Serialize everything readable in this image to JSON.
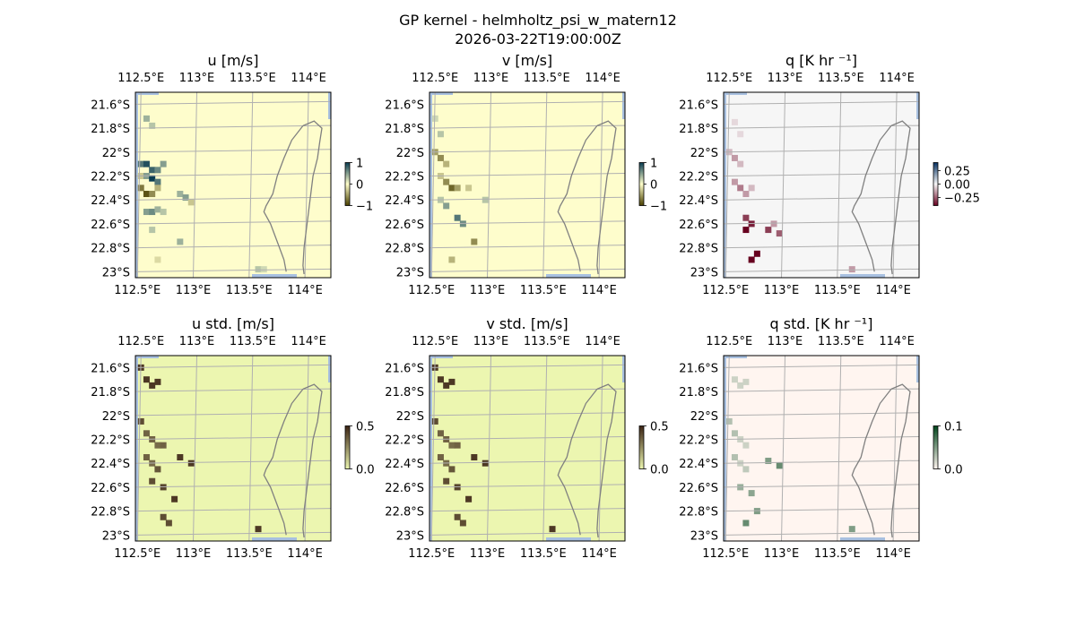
{
  "title": "GP kernel - helmholtz_psi_w_matern12",
  "subtitle": "2026-03-22T19:00:00Z",
  "chart_data": {
    "type": "heatmap",
    "shared": {
      "lon_ticks": [
        112.5,
        113.0,
        113.5,
        114.0
      ],
      "lon_tick_labels": [
        "112.5°E",
        "113°E",
        "113.5°E",
        "114°E"
      ],
      "lat_ticks": [
        -21.6,
        -21.8,
        -22.0,
        -22.2,
        -22.4,
        -22.6,
        -22.8,
        -23.0
      ],
      "lat_tick_labels": [
        "21.6°S",
        "21.8°S",
        "22°S",
        "22.2°S",
        "22.4°S",
        "22.6°S",
        "22.8°S",
        "23°S"
      ],
      "xlim": [
        112.45,
        114.2
      ],
      "ylim": [
        -23.05,
        -21.5
      ],
      "grid": true,
      "coastline": [
        [
          113.95,
          -21.78
        ],
        [
          114.05,
          -21.74
        ],
        [
          114.12,
          -21.8
        ],
        [
          114.1,
          -21.92
        ],
        [
          114.08,
          -22.05
        ],
        [
          114.04,
          -22.2
        ],
        [
          114.02,
          -22.35
        ],
        [
          114.0,
          -22.5
        ],
        [
          113.98,
          -22.65
        ],
        [
          113.96,
          -22.8
        ],
        [
          113.95,
          -22.95
        ],
        [
          113.96,
          -23.02
        ]
      ],
      "peninsula_outline": [
        [
          113.95,
          -21.78
        ],
        [
          113.85,
          -21.9
        ],
        [
          113.78,
          -22.05
        ],
        [
          113.72,
          -22.2
        ],
        [
          113.68,
          -22.35
        ],
        [
          113.62,
          -22.45
        ],
        [
          113.6,
          -22.5
        ],
        [
          113.66,
          -22.6
        ],
        [
          113.72,
          -22.75
        ],
        [
          113.78,
          -22.9
        ],
        [
          113.8,
          -23.0
        ]
      ]
    },
    "panels": [
      {
        "title": "u [m/s]",
        "colormap": "diverging teal-yellow",
        "background": "#fefdcc",
        "colorbar": {
          "ticks": [
            1,
            0,
            -1
          ],
          "tick_labels": [
            "1",
            "0",
            "−1"
          ],
          "range": [
            -1,
            1
          ],
          "colors": [
            "#0a3d52",
            "#ffffcc",
            "#4a4000"
          ]
        },
        "cells": [
          {
            "lon": 112.55,
            "lat": -21.72,
            "value": 0.4
          },
          {
            "lon": 112.6,
            "lat": -21.78,
            "value": 0.3
          },
          {
            "lon": 112.5,
            "lat": -22.1,
            "value": 0.7
          },
          {
            "lon": 112.55,
            "lat": -22.1,
            "value": 0.9
          },
          {
            "lon": 112.6,
            "lat": -22.15,
            "value": 0.8
          },
          {
            "lon": 112.65,
            "lat": -22.15,
            "value": 0.6
          },
          {
            "lon": 112.7,
            "lat": -22.1,
            "value": 0.5
          },
          {
            "lon": 112.5,
            "lat": -22.2,
            "value": -0.3
          },
          {
            "lon": 112.55,
            "lat": -22.2,
            "value": 0.5
          },
          {
            "lon": 112.6,
            "lat": -22.22,
            "value": 1.0
          },
          {
            "lon": 112.65,
            "lat": -22.25,
            "value": 0.7
          },
          {
            "lon": 112.5,
            "lat": -22.3,
            "value": -0.7
          },
          {
            "lon": 112.55,
            "lat": -22.35,
            "value": -0.9
          },
          {
            "lon": 112.6,
            "lat": -22.35,
            "value": -0.6
          },
          {
            "lon": 112.65,
            "lat": -22.3,
            "value": -0.4
          },
          {
            "lon": 112.55,
            "lat": -22.5,
            "value": 0.5
          },
          {
            "lon": 112.6,
            "lat": -22.5,
            "value": 0.6
          },
          {
            "lon": 112.65,
            "lat": -22.48,
            "value": 0.4
          },
          {
            "lon": 112.7,
            "lat": -22.5,
            "value": 0.3
          },
          {
            "lon": 112.85,
            "lat": -22.35,
            "value": 0.4
          },
          {
            "lon": 112.9,
            "lat": -22.38,
            "value": 0.5
          },
          {
            "lon": 112.95,
            "lat": -22.42,
            "value": -0.3
          },
          {
            "lon": 112.6,
            "lat": -22.65,
            "value": 0.3
          },
          {
            "lon": 112.85,
            "lat": -22.75,
            "value": 0.4
          },
          {
            "lon": 112.65,
            "lat": -22.9,
            "value": -0.2
          },
          {
            "lon": 113.55,
            "lat": -22.98,
            "value": 0.3
          },
          {
            "lon": 113.6,
            "lat": -22.98,
            "value": 0.2
          }
        ]
      },
      {
        "title": "v [m/s]",
        "colormap": "diverging teal-yellow",
        "background": "#fefdcc",
        "colorbar": {
          "ticks": [
            1,
            0,
            -1
          ],
          "tick_labels": [
            "1",
            "0",
            "−1"
          ],
          "range": [
            -1,
            1
          ],
          "colors": [
            "#0a3d52",
            "#ffffcc",
            "#4a4000"
          ]
        },
        "cells": [
          {
            "lon": 112.5,
            "lat": -21.72,
            "value": 0.2
          },
          {
            "lon": 112.55,
            "lat": -21.85,
            "value": 0.3
          },
          {
            "lon": 112.5,
            "lat": -22.0,
            "value": -0.5
          },
          {
            "lon": 112.55,
            "lat": -22.05,
            "value": -0.6
          },
          {
            "lon": 112.6,
            "lat": -22.1,
            "value": -0.4
          },
          {
            "lon": 112.55,
            "lat": -22.2,
            "value": -0.3
          },
          {
            "lon": 112.6,
            "lat": -22.25,
            "value": -0.6
          },
          {
            "lon": 112.65,
            "lat": -22.3,
            "value": -0.8
          },
          {
            "lon": 112.7,
            "lat": -22.3,
            "value": -0.5
          },
          {
            "lon": 112.55,
            "lat": -22.4,
            "value": 0.3
          },
          {
            "lon": 112.6,
            "lat": -22.45,
            "value": 0.5
          },
          {
            "lon": 112.7,
            "lat": -22.55,
            "value": 0.7
          },
          {
            "lon": 112.75,
            "lat": -22.6,
            "value": 0.6
          },
          {
            "lon": 112.8,
            "lat": -22.3,
            "value": -0.3
          },
          {
            "lon": 112.95,
            "lat": -22.4,
            "value": 0.3
          },
          {
            "lon": 112.85,
            "lat": -22.75,
            "value": -0.6
          },
          {
            "lon": 112.65,
            "lat": -22.9,
            "value": -0.4
          }
        ]
      },
      {
        "title": "q [K hr ⁻¹]",
        "colormap": "diverging blue-red",
        "background": "#f6f6f6",
        "colorbar": {
          "ticks": [
            0.25,
            0.0,
            -0.25
          ],
          "tick_labels": [
            "0.25",
            "0.00",
            "−0.25"
          ],
          "range": [
            -0.4,
            0.4
          ],
          "colors": [
            "#053061",
            "#f7f7f7",
            "#67001f"
          ]
        },
        "cells": [
          {
            "lon": 112.55,
            "lat": -21.75,
            "value": -0.05
          },
          {
            "lon": 112.6,
            "lat": -21.85,
            "value": -0.05
          },
          {
            "lon": 112.5,
            "lat": -22.0,
            "value": -0.1
          },
          {
            "lon": 112.55,
            "lat": -22.05,
            "value": -0.15
          },
          {
            "lon": 112.6,
            "lat": -22.1,
            "value": -0.1
          },
          {
            "lon": 112.55,
            "lat": -22.25,
            "value": -0.15
          },
          {
            "lon": 112.6,
            "lat": -22.3,
            "value": -0.2
          },
          {
            "lon": 112.65,
            "lat": -22.35,
            "value": -0.15
          },
          {
            "lon": 112.7,
            "lat": -22.3,
            "value": -0.1
          },
          {
            "lon": 112.65,
            "lat": -22.55,
            "value": -0.3
          },
          {
            "lon": 112.7,
            "lat": -22.6,
            "value": -0.35
          },
          {
            "lon": 112.65,
            "lat": -22.65,
            "value": -0.4
          },
          {
            "lon": 112.85,
            "lat": -22.65,
            "value": -0.3
          },
          {
            "lon": 112.95,
            "lat": -22.68,
            "value": -0.25
          },
          {
            "lon": 112.9,
            "lat": -22.6,
            "value": -0.15
          },
          {
            "lon": 112.7,
            "lat": -22.9,
            "value": -0.45
          },
          {
            "lon": 112.75,
            "lat": -22.85,
            "value": -0.4
          },
          {
            "lon": 113.6,
            "lat": -22.98,
            "value": -0.15
          }
        ]
      },
      {
        "title": "u std. [m/s]",
        "colormap": "sequential yellow-brown",
        "background": "#ecf6b0",
        "colorbar": {
          "ticks": [
            0.5,
            0.0
          ],
          "tick_labels": [
            "0.5",
            "0.0"
          ],
          "range": [
            0,
            0.5
          ],
          "colors": [
            "#ecf6b0",
            "#3b2314"
          ]
        },
        "cells": [
          {
            "lon": 112.5,
            "lat": -21.6,
            "value": 0.45
          },
          {
            "lon": 112.55,
            "lat": -21.7,
            "value": 0.45
          },
          {
            "lon": 112.6,
            "lat": -21.75,
            "value": 0.45
          },
          {
            "lon": 112.65,
            "lat": -21.72,
            "value": 0.45
          },
          {
            "lon": 112.5,
            "lat": -22.05,
            "value": 0.4
          },
          {
            "lon": 112.55,
            "lat": -22.15,
            "value": 0.35
          },
          {
            "lon": 112.6,
            "lat": -22.2,
            "value": 0.35
          },
          {
            "lon": 112.65,
            "lat": -22.25,
            "value": 0.33
          },
          {
            "lon": 112.7,
            "lat": -22.25,
            "value": 0.35
          },
          {
            "lon": 112.55,
            "lat": -22.35,
            "value": 0.35
          },
          {
            "lon": 112.6,
            "lat": -22.4,
            "value": 0.33
          },
          {
            "lon": 112.65,
            "lat": -22.45,
            "value": 0.38
          },
          {
            "lon": 112.6,
            "lat": -22.55,
            "value": 0.4
          },
          {
            "lon": 112.7,
            "lat": -22.6,
            "value": 0.42
          },
          {
            "lon": 112.8,
            "lat": -22.7,
            "value": 0.45
          },
          {
            "lon": 112.85,
            "lat": -22.35,
            "value": 0.45
          },
          {
            "lon": 112.95,
            "lat": -22.4,
            "value": 0.45
          },
          {
            "lon": 112.7,
            "lat": -22.85,
            "value": 0.4
          },
          {
            "lon": 112.75,
            "lat": -22.9,
            "value": 0.4
          },
          {
            "lon": 113.55,
            "lat": -22.95,
            "value": 0.45
          }
        ]
      },
      {
        "title": "v std. [m/s]",
        "colormap": "sequential yellow-brown",
        "background": "#ecf6b0",
        "colorbar": {
          "ticks": [
            0.5,
            0.0
          ],
          "tick_labels": [
            "0.5",
            "0.0"
          ],
          "range": [
            0,
            0.5
          ],
          "colors": [
            "#ecf6b0",
            "#3b2314"
          ]
        },
        "cells": [
          {
            "lon": 112.5,
            "lat": -21.6,
            "value": 0.45
          },
          {
            "lon": 112.55,
            "lat": -21.7,
            "value": 0.45
          },
          {
            "lon": 112.6,
            "lat": -21.75,
            "value": 0.45
          },
          {
            "lon": 112.65,
            "lat": -21.72,
            "value": 0.45
          },
          {
            "lon": 112.5,
            "lat": -22.05,
            "value": 0.4
          },
          {
            "lon": 112.55,
            "lat": -22.15,
            "value": 0.35
          },
          {
            "lon": 112.6,
            "lat": -22.2,
            "value": 0.35
          },
          {
            "lon": 112.65,
            "lat": -22.25,
            "value": 0.33
          },
          {
            "lon": 112.7,
            "lat": -22.25,
            "value": 0.35
          },
          {
            "lon": 112.55,
            "lat": -22.35,
            "value": 0.35
          },
          {
            "lon": 112.6,
            "lat": -22.4,
            "value": 0.33
          },
          {
            "lon": 112.65,
            "lat": -22.45,
            "value": 0.38
          },
          {
            "lon": 112.6,
            "lat": -22.55,
            "value": 0.4
          },
          {
            "lon": 112.7,
            "lat": -22.6,
            "value": 0.42
          },
          {
            "lon": 112.8,
            "lat": -22.7,
            "value": 0.45
          },
          {
            "lon": 112.85,
            "lat": -22.35,
            "value": 0.45
          },
          {
            "lon": 112.95,
            "lat": -22.4,
            "value": 0.45
          },
          {
            "lon": 112.7,
            "lat": -22.85,
            "value": 0.4
          },
          {
            "lon": 112.75,
            "lat": -22.9,
            "value": 0.4
          },
          {
            "lon": 113.55,
            "lat": -22.95,
            "value": 0.45
          }
        ]
      },
      {
        "title": "q std. [K hr ⁻¹]",
        "colormap": "sequential pink-green",
        "background": "#fff5f0",
        "colorbar": {
          "ticks": [
            0.1,
            0.0
          ],
          "tick_labels": [
            "0.1",
            "0.0"
          ],
          "range": [
            0,
            0.1
          ],
          "colors": [
            "#fff5f0",
            "#00441b"
          ]
        },
        "cells": [
          {
            "lon": 112.55,
            "lat": -21.7,
            "value": 0.02
          },
          {
            "lon": 112.6,
            "lat": -21.75,
            "value": 0.02
          },
          {
            "lon": 112.65,
            "lat": -21.72,
            "value": 0.02
          },
          {
            "lon": 112.5,
            "lat": -22.05,
            "value": 0.03
          },
          {
            "lon": 112.55,
            "lat": -22.15,
            "value": 0.03
          },
          {
            "lon": 112.6,
            "lat": -22.2,
            "value": 0.02
          },
          {
            "lon": 112.65,
            "lat": -22.25,
            "value": 0.02
          },
          {
            "lon": 112.55,
            "lat": -22.35,
            "value": 0.03
          },
          {
            "lon": 112.6,
            "lat": -22.4,
            "value": 0.02
          },
          {
            "lon": 112.65,
            "lat": -22.45,
            "value": 0.025
          },
          {
            "lon": 112.6,
            "lat": -22.6,
            "value": 0.04
          },
          {
            "lon": 112.7,
            "lat": -22.65,
            "value": 0.045
          },
          {
            "lon": 112.75,
            "lat": -22.8,
            "value": 0.05
          },
          {
            "lon": 112.85,
            "lat": -22.38,
            "value": 0.05
          },
          {
            "lon": 112.95,
            "lat": -22.42,
            "value": 0.06
          },
          {
            "lon": 112.65,
            "lat": -22.9,
            "value": 0.06
          },
          {
            "lon": 113.6,
            "lat": -22.95,
            "value": 0.05
          }
        ]
      }
    ]
  }
}
